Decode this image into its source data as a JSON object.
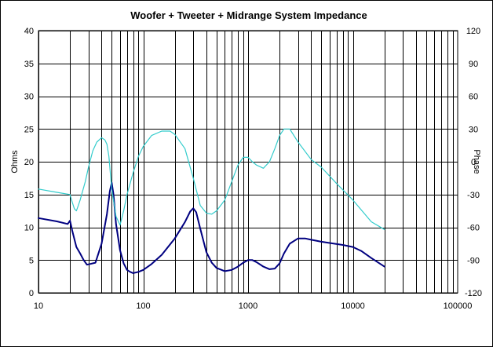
{
  "chart_data": {
    "type": "line",
    "title": "Woofer + Tweeter + Midrange  System Impedance",
    "ylabel": "Ohms",
    "y2label": "Phase",
    "x_scale": "log",
    "xlim": [
      10,
      100000
    ],
    "ylim": [
      0,
      40
    ],
    "y2lim": [
      -120,
      120
    ],
    "grid": true,
    "x_ticks": [
      10,
      100,
      1000,
      10000,
      100000
    ],
    "x_tick_labels": [
      "10",
      "100",
      "1000",
      "10000",
      "100000"
    ],
    "y_ticks": [
      0,
      5,
      10,
      15,
      20,
      25,
      30,
      35,
      40
    ],
    "y_tick_labels": [
      "0",
      "5",
      "10",
      "15",
      "20",
      "25",
      "30",
      "35",
      "40"
    ],
    "y2_ticks": [
      -120,
      -90,
      -60,
      -30,
      0,
      30,
      60,
      90,
      120
    ],
    "y2_tick_labels": [
      "-120",
      "-90",
      "-60",
      "-30",
      "0",
      "30",
      "60",
      "90",
      "120"
    ],
    "colors": {
      "impedance": "#000080",
      "phase": "#33CCCC",
      "grid": "#000000"
    },
    "series": [
      {
        "axis": "left",
        "x": [
          10,
          15,
          19,
          20,
          21,
          23,
          25,
          27,
          29,
          31,
          35,
          40,
          45,
          48,
          50,
          52,
          55,
          60,
          65,
          70,
          75,
          80,
          90,
          100,
          120,
          150,
          200,
          250,
          280,
          300,
          320,
          350,
          400,
          450,
          500,
          600,
          700,
          800,
          900,
          1000,
          1100,
          1200,
          1400,
          1600,
          1800,
          2000,
          2200,
          2500,
          3000,
          3500,
          4000,
          5000,
          6000,
          8000,
          10000,
          12000,
          15000,
          20000
        ],
        "y": [
          11.4,
          10.9,
          10.5,
          11.0,
          9.5,
          7.0,
          6.0,
          5.0,
          4.3,
          4.4,
          4.6,
          7.5,
          12.0,
          15.5,
          16.8,
          15.0,
          10.5,
          6.5,
          4.5,
          3.5,
          3.2,
          3.0,
          3.2,
          3.5,
          4.4,
          5.8,
          8.3,
          10.8,
          12.4,
          12.9,
          12.3,
          9.8,
          6.2,
          4.6,
          3.8,
          3.3,
          3.5,
          4.0,
          4.6,
          5.0,
          5.0,
          4.7,
          4.0,
          3.6,
          3.7,
          4.5,
          6.0,
          7.5,
          8.3,
          8.3,
          8.1,
          7.8,
          7.6,
          7.3,
          7.0,
          6.4,
          5.3,
          4.0
        ]
      },
      {
        "axis": "right",
        "x": [
          10,
          15,
          20,
          21,
          22,
          23,
          24,
          25,
          28,
          30,
          33,
          36,
          40,
          43,
          45,
          47,
          50,
          55,
          60,
          65,
          70,
          80,
          90,
          100,
          120,
          150,
          180,
          200,
          250,
          300,
          350,
          400,
          450,
          500,
          600,
          700,
          800,
          900,
          1000,
          1100,
          1200,
          1400,
          1600,
          1800,
          2000,
          2200,
          2500,
          3000,
          4000,
          5000,
          7000,
          10000,
          15000,
          20000
        ],
        "y": [
          -25,
          -28,
          -30,
          -37,
          -43,
          -45,
          -40,
          -35,
          -18,
          -5,
          10,
          18,
          22,
          20,
          16,
          5,
          -25,
          -50,
          -58,
          -45,
          -30,
          -10,
          5,
          14,
          24,
          28,
          28,
          25,
          12,
          -15,
          -40,
          -47,
          -48,
          -45,
          -35,
          -18,
          -3,
          4,
          4,
          0,
          -3,
          -6,
          0,
          12,
          24,
          30,
          30,
          18,
          2,
          -5,
          -20,
          -35,
          -55,
          -62
        ]
      }
    ]
  }
}
